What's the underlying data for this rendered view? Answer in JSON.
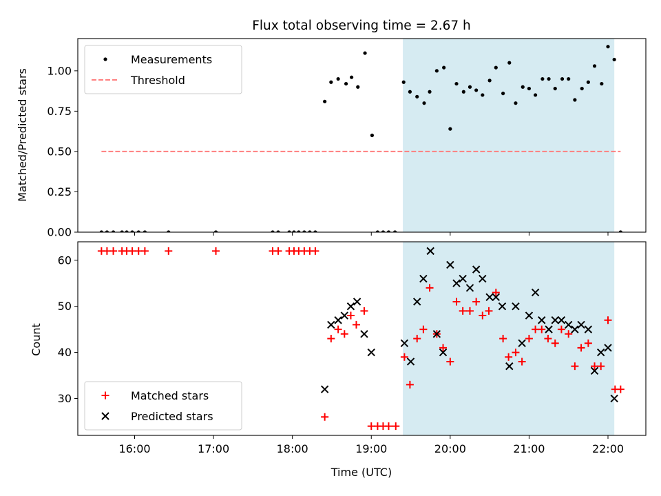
{
  "figure": {
    "title": "Flux total observing time = 2.67 h",
    "xlabel": "Time (UTC)",
    "x_tick_labels": [
      "16:00",
      "17:00",
      "18:00",
      "19:00",
      "20:00",
      "21:00",
      "22:00"
    ]
  },
  "chart_data": [
    {
      "type": "scatter",
      "ylabel": "Matched/Predicted stars",
      "x_unit": "hours UTC",
      "xlim": [
        15.28,
        22.48
      ],
      "ylim": [
        0.0,
        1.2
      ],
      "y_ticks": [
        "0.00",
        "0.25",
        "0.50",
        "0.75",
        "1.00"
      ],
      "legend_position": "top-left",
      "grid": false,
      "shaded_span": {
        "x": [
          19.4,
          22.08
        ],
        "color": "#add8e6"
      },
      "series": [
        {
          "name": "Measurements",
          "color": "#000000",
          "marker": "dot",
          "points": [
            [
              15.58,
              0.0
            ],
            [
              15.65,
              0.0
            ],
            [
              15.73,
              0.0
            ],
            [
              15.84,
              0.0
            ],
            [
              15.9,
              0.0
            ],
            [
              15.97,
              0.0
            ],
            [
              16.05,
              0.0
            ],
            [
              16.13,
              0.0
            ],
            [
              16.43,
              0.0
            ],
            [
              17.03,
              0.0
            ],
            [
              17.75,
              0.0
            ],
            [
              17.82,
              0.0
            ],
            [
              17.96,
              0.0
            ],
            [
              18.02,
              0.0
            ],
            [
              18.08,
              0.0
            ],
            [
              18.15,
              0.0
            ],
            [
              18.22,
              0.0
            ],
            [
              18.29,
              0.0
            ],
            [
              18.41,
              0.81
            ],
            [
              18.49,
              0.93
            ],
            [
              18.58,
              0.95
            ],
            [
              18.68,
              0.92
            ],
            [
              18.75,
              0.96
            ],
            [
              18.83,
              0.9
            ],
            [
              18.92,
              1.11
            ],
            [
              19.01,
              0.6
            ],
            [
              19.08,
              0.0
            ],
            [
              19.15,
              0.0
            ],
            [
              19.22,
              0.0
            ],
            [
              19.3,
              0.0
            ],
            [
              19.41,
              0.93
            ],
            [
              19.49,
              0.87
            ],
            [
              19.58,
              0.84
            ],
            [
              19.67,
              0.8
            ],
            [
              19.74,
              0.87
            ],
            [
              19.83,
              1.0
            ],
            [
              19.92,
              1.02
            ],
            [
              20.0,
              0.64
            ],
            [
              20.08,
              0.92
            ],
            [
              20.17,
              0.87
            ],
            [
              20.25,
              0.9
            ],
            [
              20.33,
              0.88
            ],
            [
              20.41,
              0.85
            ],
            [
              20.5,
              0.94
            ],
            [
              20.58,
              1.02
            ],
            [
              20.67,
              0.86
            ],
            [
              20.75,
              1.05
            ],
            [
              20.83,
              0.8
            ],
            [
              20.92,
              0.9
            ],
            [
              21.0,
              0.89
            ],
            [
              21.08,
              0.85
            ],
            [
              21.17,
              0.95
            ],
            [
              21.25,
              0.95
            ],
            [
              21.33,
              0.89
            ],
            [
              21.42,
              0.95
            ],
            [
              21.5,
              0.95
            ],
            [
              21.58,
              0.82
            ],
            [
              21.67,
              0.89
            ],
            [
              21.75,
              0.93
            ],
            [
              21.83,
              1.03
            ],
            [
              21.92,
              0.92
            ],
            [
              22.0,
              1.15
            ],
            [
              22.08,
              1.07
            ],
            [
              22.16,
              0.0
            ]
          ]
        },
        {
          "name": "Threshold",
          "color": "#ff7f7f",
          "style": "dashed",
          "points": [
            [
              15.58,
              0.5
            ],
            [
              22.16,
              0.5
            ]
          ]
        }
      ]
    },
    {
      "type": "scatter",
      "ylabel": "Count",
      "x_unit": "hours UTC",
      "xlim": [
        15.28,
        22.48
      ],
      "ylim": [
        22,
        64
      ],
      "y_ticks": [
        "30",
        "40",
        "50",
        "60"
      ],
      "legend_position": "bottom-left",
      "grid": false,
      "shaded_span": {
        "x": [
          19.4,
          22.08
        ],
        "color": "#add8e6"
      },
      "series": [
        {
          "name": "Matched stars",
          "color": "#ff0000",
          "marker": "plus",
          "points": [
            [
              15.58,
              62
            ],
            [
              15.65,
              62
            ],
            [
              15.73,
              62
            ],
            [
              15.84,
              62
            ],
            [
              15.9,
              62
            ],
            [
              15.97,
              62
            ],
            [
              16.05,
              62
            ],
            [
              16.13,
              62
            ],
            [
              16.43,
              62
            ],
            [
              17.03,
              62
            ],
            [
              17.75,
              62
            ],
            [
              17.82,
              62
            ],
            [
              17.96,
              62
            ],
            [
              18.02,
              62
            ],
            [
              18.08,
              62
            ],
            [
              18.15,
              62
            ],
            [
              18.22,
              62
            ],
            [
              18.29,
              62
            ],
            [
              18.41,
              26
            ],
            [
              18.49,
              43
            ],
            [
              18.58,
              45
            ],
            [
              18.66,
              44
            ],
            [
              18.74,
              48
            ],
            [
              18.81,
              46
            ],
            [
              18.91,
              49
            ],
            [
              19.0,
              24
            ],
            [
              19.08,
              24
            ],
            [
              19.15,
              24
            ],
            [
              19.22,
              24
            ],
            [
              19.31,
              24
            ],
            [
              19.42,
              39
            ],
            [
              19.49,
              33
            ],
            [
              19.58,
              43
            ],
            [
              19.66,
              45
            ],
            [
              19.74,
              54
            ],
            [
              19.83,
              44
            ],
            [
              19.91,
              41
            ],
            [
              20.0,
              38
            ],
            [
              20.08,
              51
            ],
            [
              20.16,
              49
            ],
            [
              20.25,
              49
            ],
            [
              20.33,
              51
            ],
            [
              20.41,
              48
            ],
            [
              20.49,
              49
            ],
            [
              20.58,
              53
            ],
            [
              20.67,
              43
            ],
            [
              20.74,
              39
            ],
            [
              20.83,
              40
            ],
            [
              20.91,
              38
            ],
            [
              21.0,
              43
            ],
            [
              21.08,
              45
            ],
            [
              21.16,
              45
            ],
            [
              21.24,
              43
            ],
            [
              21.33,
              42
            ],
            [
              21.41,
              45
            ],
            [
              21.5,
              44
            ],
            [
              21.58,
              37
            ],
            [
              21.66,
              41
            ],
            [
              21.75,
              42
            ],
            [
              21.83,
              37
            ],
            [
              21.91,
              37
            ],
            [
              22.0,
              47
            ],
            [
              22.09,
              32
            ],
            [
              22.16,
              32
            ]
          ]
        },
        {
          "name": "Predicted stars",
          "color": "#000000",
          "marker": "x",
          "points": [
            [
              18.41,
              32
            ],
            [
              18.49,
              46
            ],
            [
              18.58,
              47
            ],
            [
              18.66,
              48
            ],
            [
              18.74,
              50
            ],
            [
              18.82,
              51
            ],
            [
              18.91,
              44
            ],
            [
              19.0,
              40
            ],
            [
              19.42,
              42
            ],
            [
              19.5,
              38
            ],
            [
              19.58,
              51
            ],
            [
              19.66,
              56
            ],
            [
              19.75,
              62
            ],
            [
              19.83,
              44
            ],
            [
              19.91,
              40
            ],
            [
              20.0,
              59
            ],
            [
              20.08,
              55
            ],
            [
              20.16,
              56
            ],
            [
              20.25,
              54
            ],
            [
              20.33,
              58
            ],
            [
              20.41,
              56
            ],
            [
              20.5,
              52
            ],
            [
              20.58,
              52
            ],
            [
              20.66,
              50
            ],
            [
              20.75,
              37
            ],
            [
              20.83,
              50
            ],
            [
              20.91,
              42
            ],
            [
              21.0,
              48
            ],
            [
              21.08,
              53
            ],
            [
              21.16,
              47
            ],
            [
              21.25,
              45
            ],
            [
              21.33,
              47
            ],
            [
              21.41,
              47
            ],
            [
              21.5,
              46
            ],
            [
              21.58,
              45
            ],
            [
              21.66,
              46
            ],
            [
              21.75,
              45
            ],
            [
              21.83,
              36
            ],
            [
              21.91,
              40
            ],
            [
              22.0,
              41
            ],
            [
              22.08,
              30
            ]
          ]
        }
      ]
    }
  ]
}
